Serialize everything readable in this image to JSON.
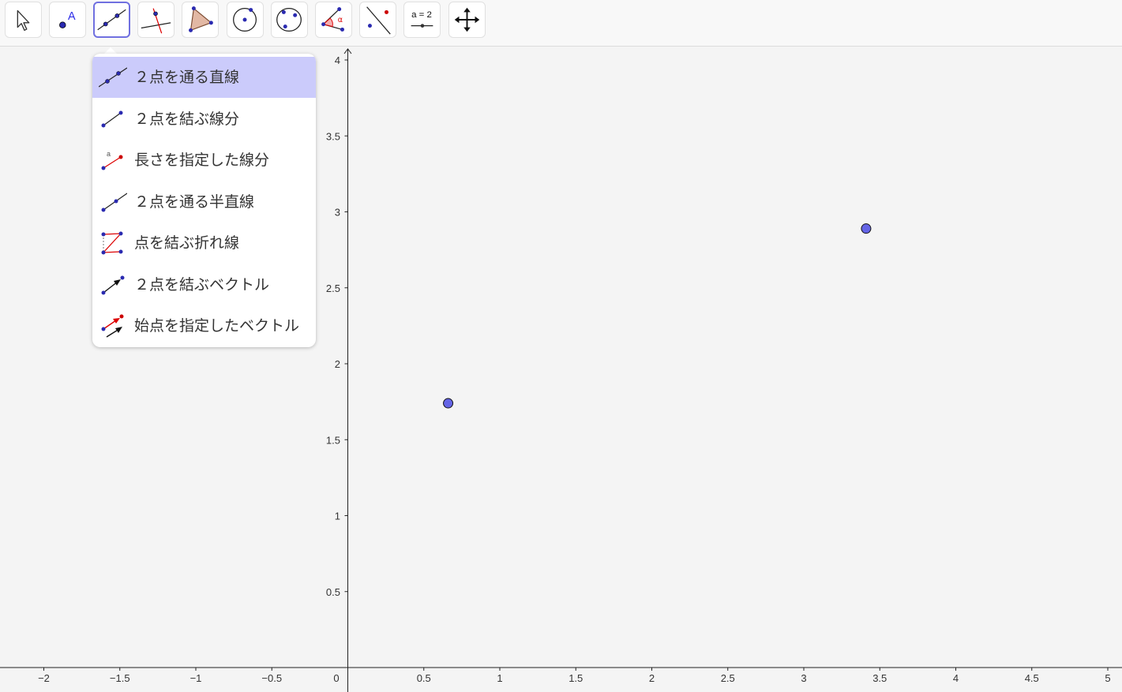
{
  "toolbar": {
    "tools": [
      {
        "name": "move-tool",
        "icon": "cursor-arrow-icon",
        "active": false
      },
      {
        "name": "point-tool",
        "icon": "point-icon",
        "active": false
      },
      {
        "name": "line-tool",
        "icon": "line-through-points-icon",
        "active": true
      },
      {
        "name": "perpendicular-line-tool",
        "icon": "perpendicular-line-icon",
        "active": false
      },
      {
        "name": "polygon-tool",
        "icon": "polygon-icon",
        "active": false
      },
      {
        "name": "circle-center-point-tool",
        "icon": "circle-center-icon",
        "active": false
      },
      {
        "name": "circle-three-points-tool",
        "icon": "circle-three-points-icon",
        "active": false
      },
      {
        "name": "angle-tool",
        "icon": "angle-icon",
        "active": false
      },
      {
        "name": "reflect-tool",
        "icon": "reflect-icon",
        "active": false
      },
      {
        "name": "slider-tool",
        "icon": "slider-icon",
        "active": false
      },
      {
        "name": "move-graphics-view-tool",
        "icon": "move-arrows-icon",
        "active": false
      }
    ],
    "angle_glyph": "α",
    "slider_label": "a = 2",
    "point_label": "A"
  },
  "menu": {
    "items": [
      {
        "label": "２点を通る直線",
        "icon": "line-through-points-icon",
        "selected": true
      },
      {
        "label": "２点を結ぶ線分",
        "icon": "segment-icon",
        "selected": false
      },
      {
        "label": "長さを指定した線分",
        "icon": "segment-fixed-length-icon",
        "selected": false
      },
      {
        "label": "２点を通る半直線",
        "icon": "ray-icon",
        "selected": false
      },
      {
        "label": "点を結ぶ折れ線",
        "icon": "polyline-icon",
        "selected": false
      },
      {
        "label": "２点を結ぶベクトル",
        "icon": "vector-icon",
        "selected": false
      },
      {
        "label": "始点を指定したベクトル",
        "icon": "vector-from-point-icon",
        "selected": false
      }
    ],
    "length_glyph": "a"
  },
  "graph": {
    "x_ticks": [
      "−2",
      "−1.5",
      "−1",
      "−0.5",
      "0.5",
      "1",
      "1.5",
      "2",
      "2.5",
      "3",
      "3.5",
      "4",
      "4.5",
      "5"
    ],
    "y_ticks": [
      "0.5",
      "1",
      "1.5",
      "2",
      "2.5",
      "3",
      "3.5",
      "4"
    ],
    "origin_label": "0",
    "points": [
      {
        "x": 0.66,
        "y": 1.74
      },
      {
        "x": 3.41,
        "y": 2.89
      }
    ],
    "point_color": "#6464e6"
  }
}
